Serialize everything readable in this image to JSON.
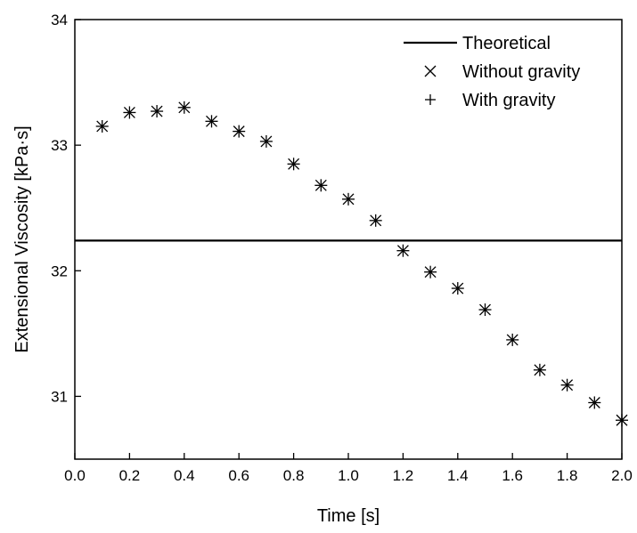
{
  "chart_data": {
    "type": "scatter",
    "title": "",
    "xlabel": "Time [s]",
    "ylabel": "Extensional Viscosity [kPa·s]",
    "xlim": [
      0.0,
      2.0
    ],
    "ylim": [
      30.5,
      34.0
    ],
    "x_ticks": [
      0.0,
      0.2,
      0.4,
      0.6,
      0.8,
      1.0,
      1.2,
      1.4,
      1.6,
      1.8,
      2.0
    ],
    "x_tick_labels": [
      "0.0",
      "0.2",
      "0.4",
      "0.6",
      "0.8",
      "1.0",
      "1.2",
      "1.4",
      "1.6",
      "1.8",
      "2.0"
    ],
    "y_ticks": [
      31,
      32,
      33,
      34
    ],
    "y_tick_labels": [
      "31",
      "32",
      "33",
      "34"
    ],
    "grid": false,
    "legend_position": "top-right",
    "theoretical": {
      "name": "Theoretical",
      "value": 32.24,
      "marker": "line"
    },
    "series": [
      {
        "name": "Without gravity",
        "marker": "x",
        "x": [
          0.1,
          0.2,
          0.3,
          0.4,
          0.5,
          0.6,
          0.7,
          0.8,
          0.9,
          1.0,
          1.1,
          1.2,
          1.3,
          1.4,
          1.5,
          1.6,
          1.7,
          1.8,
          1.9,
          2.0
        ],
        "values": [
          33.15,
          33.26,
          33.27,
          33.3,
          33.19,
          33.11,
          33.03,
          32.85,
          32.68,
          32.57,
          32.4,
          32.16,
          31.99,
          31.86,
          31.69,
          31.45,
          31.21,
          31.09,
          30.95,
          30.81
        ]
      },
      {
        "name": "With gravity",
        "marker": "+",
        "x": [
          0.1,
          0.2,
          0.3,
          0.4,
          0.5,
          0.6,
          0.7,
          0.8,
          0.9,
          1.0,
          1.1,
          1.2,
          1.3,
          1.4,
          1.5,
          1.6,
          1.7,
          1.8,
          1.9,
          2.0
        ],
        "values": [
          33.15,
          33.26,
          33.27,
          33.3,
          33.19,
          33.11,
          33.03,
          32.85,
          32.68,
          32.57,
          32.4,
          32.16,
          31.99,
          31.86,
          31.69,
          31.45,
          31.21,
          31.09,
          30.95,
          30.81
        ]
      }
    ],
    "colors": {
      "line": "#000000",
      "markers": "#000000",
      "background": "#ffffff"
    }
  }
}
